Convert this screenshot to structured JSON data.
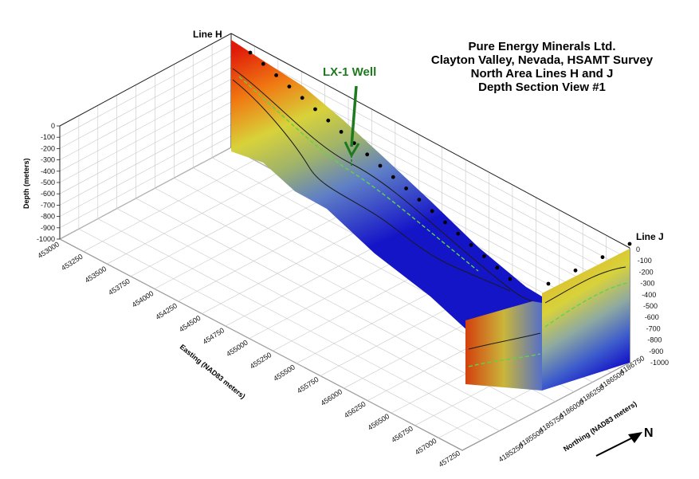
{
  "title": {
    "lines": [
      "Pure Energy Minerals Ltd.",
      "Clayton Valley, Nevada, HSAMT Survey",
      "North Area Lines H and J",
      "Depth Section View #1"
    ]
  },
  "labels": {
    "line_h": "Line H",
    "line_j": "Line J",
    "well": "LX-1 Well",
    "north": "N"
  },
  "colors": {
    "well": "#1f7a1f",
    "conductive": "#e01a0a",
    "resistive": "#1515c8",
    "mid": "#d8d23a"
  },
  "icons": {
    "well_arrow": "down-arrow-icon",
    "north_arrow": "north-arrow-icon"
  },
  "chart_data": {
    "type": "3d-depth-section",
    "title": "Pure Energy Minerals Ltd. Clayton Valley, Nevada, HSAMT Survey North Area Lines H and J Depth Section View #1",
    "axes": {
      "depth": {
        "label": "Depth (meters)",
        "ticks": [
          "0",
          "-100",
          "-200",
          "-300",
          "-400",
          "-500",
          "-600",
          "-700",
          "-800",
          "-900",
          "-1000"
        ],
        "range": [
          -1000,
          0
        ]
      },
      "easting": {
        "label": "Easting (NAD83 meters)",
        "ticks": [
          "453000",
          "453250",
          "453500",
          "453750",
          "454000",
          "454250",
          "454500",
          "454750",
          "455000",
          "455250",
          "455500",
          "455750",
          "456000",
          "456250",
          "456500",
          "456750",
          "457000",
          "457250"
        ],
        "range": [
          453000,
          457250
        ]
      },
      "northing": {
        "label": "Northing (NAD83 meters)",
        "ticks": [
          "4185250",
          "4185500",
          "4185750",
          "4186000",
          "4186250",
          "4186500",
          "4186750"
        ],
        "range": [
          4185250,
          4186750
        ]
      },
      "right_depth_ticks": [
        "0",
        "-100",
        "-200",
        "-300",
        "-400",
        "-500",
        "-600",
        "-700",
        "-800",
        "-900",
        "-1000"
      ]
    },
    "sections": [
      {
        "name": "Line H",
        "stations": 21
      },
      {
        "name": "Line J",
        "stations": 4
      }
    ],
    "annotations": [
      {
        "text": "LX-1 Well",
        "line": "Line H"
      }
    ],
    "grid": true
  }
}
